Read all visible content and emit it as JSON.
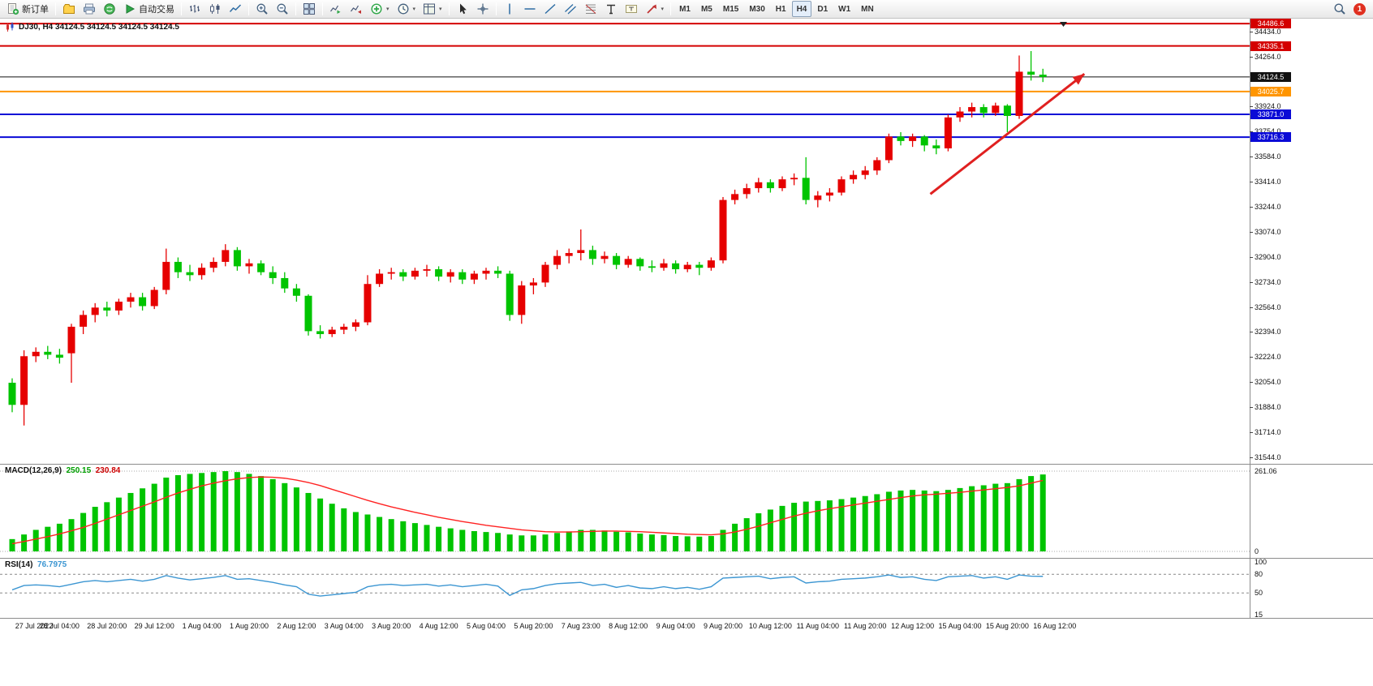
{
  "toolbar": {
    "new_order_label": "新订单",
    "auto_trading_label": "自动交易",
    "notification_count": "1",
    "timeframes": [
      "M1",
      "M5",
      "M15",
      "M30",
      "H1",
      "H4",
      "D1",
      "W1",
      "MN"
    ],
    "active_timeframe": "H4",
    "items": [
      {
        "name": "new-order-button",
        "icon": "new-order-icon",
        "label": "新订单"
      },
      {
        "divider": true
      },
      {
        "name": "profiles-button",
        "icon": "profiles-icon"
      },
      {
        "name": "print-button",
        "icon": "print-icon"
      },
      {
        "name": "community-button",
        "icon": "community-icon"
      },
      {
        "name": "auto-trading-button",
        "icon": "autotrading-icon",
        "label": "自动交易"
      },
      {
        "divider": true
      },
      {
        "name": "bar-chart-button",
        "icon": "bar-chart-icon"
      },
      {
        "name": "candlestick-button",
        "icon": "candlestick-icon"
      },
      {
        "name": "line-chart-button",
        "icon": "line-chart-icon"
      },
      {
        "divider": true
      },
      {
        "name": "zoom-in-button",
        "icon": "zoom-in-icon"
      },
      {
        "name": "zoom-out-button",
        "icon": "zoom-out-icon"
      },
      {
        "divider": true
      },
      {
        "name": "tile-windows-button",
        "icon": "tile-windows-icon"
      },
      {
        "divider": true
      },
      {
        "name": "auto-scroll-button",
        "icon": "auto-scroll-icon"
      },
      {
        "name": "chart-shift-button",
        "icon": "chart-shift-icon"
      },
      {
        "name": "indicators-button",
        "icon": "indicators-add-icon",
        "dropdown": true
      },
      {
        "name": "periods-button",
        "icon": "periods-clock-icon",
        "dropdown": true
      },
      {
        "name": "templates-button",
        "icon": "templates-icon",
        "dropdown": true
      },
      {
        "divider": true
      },
      {
        "name": "cursor-button",
        "icon": "cursor-icon"
      },
      {
        "name": "crosshair-button",
        "icon": "crosshair-icon"
      },
      {
        "divider": true
      },
      {
        "name": "vertical-line-button",
        "icon": "vertical-line-icon"
      },
      {
        "name": "horizontal-line-button",
        "icon": "horizontal-line-icon"
      },
      {
        "name": "trendline-button",
        "icon": "trendline-icon"
      },
      {
        "name": "equidistant-channel-button",
        "icon": "equidistant-channel-icon"
      },
      {
        "name": "fibonacci-button",
        "icon": "fibonacci-icon"
      },
      {
        "name": "text-button",
        "icon": "text-icon"
      },
      {
        "name": "label-button",
        "icon": "label-icon"
      },
      {
        "name": "arrows-button",
        "icon": "arrows-icon",
        "dropdown": true
      },
      {
        "divider": true
      },
      {
        "type": "timeframes"
      }
    ]
  },
  "chart": {
    "symbol_ohlc_line": "DJ30, H4  34124.5 34124.5 34124.5 34124.5",
    "price_axis_ticks": [
      "34434.0",
      "34264.0",
      "33924.0",
      "33754.0",
      "33584.0",
      "33414.0",
      "33244.0",
      "33074.0",
      "32904.0",
      "32734.0",
      "32564.0",
      "32394.0",
      "32224.0",
      "32054.0",
      "31884.0",
      "31714.0",
      "31544.0"
    ],
    "price_tags": [
      {
        "price": 34486.6,
        "label": "34486.6",
        "color": "#d40000"
      },
      {
        "price": 34335.1,
        "label": "34335.1",
        "color": "#d40000"
      },
      {
        "price": 34124.5,
        "label": "34124.5",
        "color": "#111111"
      },
      {
        "price": 34025.7,
        "label": "34025.7",
        "color": "#ff9500"
      },
      {
        "price": 33871.0,
        "label": "33871.0",
        "color": "#0a0ad6"
      },
      {
        "price": 33716.3,
        "label": "33716.3",
        "color": "#0a0ad6"
      }
    ]
  },
  "chart_data": {
    "type": "candlestick",
    "symbol": "DJ30",
    "timeframe": "H4",
    "title": "DJ30, H4  34124.5 34124.5 34124.5 34124.5",
    "price_range": [
      31500,
      34520
    ],
    "up_color": "#e60000",
    "down_color": "#00c400",
    "x_labels": [
      "27 Jul 2022",
      "28 Jul 04:00",
      "28 Jul 20:00",
      "29 Jul 12:00",
      "1 Aug 04:00",
      "1 Aug 20:00",
      "2 Aug 12:00",
      "3 Aug 04:00",
      "3 Aug 20:00",
      "4 Aug 12:00",
      "5 Aug 04:00",
      "5 Aug 20:00",
      "7 Aug 23:00",
      "8 Aug 12:00",
      "9 Aug 04:00",
      "9 Aug 20:00",
      "10 Aug 12:00",
      "11 Aug 04:00",
      "11 Aug 20:00",
      "12 Aug 12:00",
      "15 Aug 04:00",
      "15 Aug 20:00",
      "16 Aug 12:00"
    ],
    "candles_ohlc": [
      [
        32050,
        32080,
        31850,
        31900
      ],
      [
        31900,
        32270,
        31760,
        32230
      ],
      [
        32230,
        32290,
        32190,
        32260
      ],
      [
        32260,
        32300,
        32210,
        32240
      ],
      [
        32240,
        32280,
        32180,
        32220
      ],
      [
        32250,
        32450,
        32050,
        32430
      ],
      [
        32430,
        32540,
        32380,
        32510
      ],
      [
        32510,
        32590,
        32460,
        32560
      ],
      [
        32560,
        32600,
        32500,
        32540
      ],
      [
        32540,
        32620,
        32510,
        32600
      ],
      [
        32600,
        32660,
        32560,
        32630
      ],
      [
        32630,
        32660,
        32540,
        32570
      ],
      [
        32570,
        32700,
        32550,
        32680
      ],
      [
        32680,
        32960,
        32650,
        32870
      ],
      [
        32870,
        32900,
        32760,
        32800
      ],
      [
        32800,
        32850,
        32740,
        32780
      ],
      [
        32780,
        32860,
        32750,
        32830
      ],
      [
        32830,
        32900,
        32800,
        32870
      ],
      [
        32870,
        32990,
        32840,
        32950
      ],
      [
        32950,
        32970,
        32810,
        32840
      ],
      [
        32840,
        32890,
        32790,
        32860
      ],
      [
        32860,
        32880,
        32780,
        32800
      ],
      [
        32800,
        32840,
        32720,
        32760
      ],
      [
        32760,
        32800,
        32660,
        32690
      ],
      [
        32690,
        32720,
        32600,
        32640
      ],
      [
        32640,
        32650,
        32370,
        32400
      ],
      [
        32400,
        32440,
        32350,
        32380
      ],
      [
        32380,
        32430,
        32360,
        32410
      ],
      [
        32410,
        32450,
        32380,
        32430
      ],
      [
        32430,
        32480,
        32400,
        32460
      ],
      [
        32460,
        32780,
        32440,
        32720
      ],
      [
        32720,
        32820,
        32700,
        32790
      ],
      [
        32790,
        32830,
        32750,
        32800
      ],
      [
        32800,
        32820,
        32740,
        32770
      ],
      [
        32770,
        32830,
        32750,
        32810
      ],
      [
        32810,
        32850,
        32770,
        32820
      ],
      [
        32820,
        32840,
        32740,
        32770
      ],
      [
        32770,
        32820,
        32730,
        32800
      ],
      [
        32800,
        32820,
        32720,
        32750
      ],
      [
        32750,
        32810,
        32720,
        32790
      ],
      [
        32790,
        32830,
        32750,
        32810
      ],
      [
        32810,
        32840,
        32760,
        32790
      ],
      [
        32790,
        32810,
        32470,
        32510
      ],
      [
        32510,
        32740,
        32450,
        32710
      ],
      [
        32710,
        32760,
        32650,
        32730
      ],
      [
        32730,
        32870,
        32700,
        32850
      ],
      [
        32850,
        32950,
        32820,
        32910
      ],
      [
        32910,
        32960,
        32860,
        32930
      ],
      [
        32930,
        33090,
        32880,
        32950
      ],
      [
        32950,
        32980,
        32850,
        32890
      ],
      [
        32890,
        32940,
        32860,
        32910
      ],
      [
        32910,
        32930,
        32820,
        32850
      ],
      [
        32850,
        32910,
        32830,
        32890
      ],
      [
        32890,
        32900,
        32810,
        32840
      ],
      [
        32840,
        32880,
        32800,
        32830
      ],
      [
        32830,
        32890,
        32810,
        32860
      ],
      [
        32860,
        32880,
        32790,
        32820
      ],
      [
        32820,
        32870,
        32800,
        32850
      ],
      [
        32850,
        32870,
        32780,
        32830
      ],
      [
        32830,
        32900,
        32810,
        32880
      ],
      [
        32880,
        33310,
        32860,
        33290
      ],
      [
        33290,
        33360,
        33260,
        33330
      ],
      [
        33330,
        33400,
        33300,
        33370
      ],
      [
        33370,
        33440,
        33340,
        33410
      ],
      [
        33410,
        33430,
        33340,
        33370
      ],
      [
        33370,
        33450,
        33350,
        33430
      ],
      [
        33430,
        33470,
        33390,
        33440
      ],
      [
        33440,
        33580,
        33260,
        33290
      ],
      [
        33290,
        33350,
        33240,
        33320
      ],
      [
        33320,
        33370,
        33280,
        33340
      ],
      [
        33340,
        33450,
        33320,
        33430
      ],
      [
        33430,
        33490,
        33400,
        33460
      ],
      [
        33460,
        33520,
        33430,
        33490
      ],
      [
        33490,
        33580,
        33460,
        33560
      ],
      [
        33560,
        33740,
        33540,
        33720
      ],
      [
        33720,
        33750,
        33660,
        33690
      ],
      [
        33690,
        33740,
        33650,
        33720
      ],
      [
        33720,
        33730,
        33620,
        33660
      ],
      [
        33660,
        33700,
        33600,
        33640
      ],
      [
        33640,
        33870,
        33620,
        33850
      ],
      [
        33850,
        33920,
        33820,
        33890
      ],
      [
        33890,
        33950,
        33850,
        33920
      ],
      [
        33920,
        33940,
        33850,
        33880
      ],
      [
        33880,
        33950,
        33860,
        33930
      ],
      [
        33930,
        33940,
        33750,
        33860
      ],
      [
        33860,
        34270,
        33840,
        34160
      ],
      [
        34160,
        34300,
        34100,
        34140
      ],
      [
        34140,
        34180,
        34090,
        34124.5
      ]
    ],
    "annotations": {
      "trend_arrow": {
        "from_index": 77.5,
        "from_price": 33330,
        "to_index": 90.5,
        "to_price": 34145,
        "color": "#e02020"
      }
    },
    "macd": {
      "label": "MACD(12,26,9)",
      "main_value": "250.15",
      "signal_value": "230.84",
      "axis_max": "261.06",
      "axis_min": "0",
      "histogram_color": "#00c400",
      "signal_color": "#ff2222",
      "histogram": [
        40,
        55,
        70,
        80,
        90,
        105,
        125,
        145,
        160,
        175,
        190,
        205,
        220,
        240,
        248,
        252,
        255,
        258,
        261,
        258,
        252,
        245,
        235,
        222,
        208,
        190,
        172,
        155,
        140,
        128,
        120,
        112,
        105,
        98,
        92,
        86,
        80,
        75,
        70,
        66,
        63,
        60,
        55,
        52,
        52,
        55,
        60,
        65,
        70,
        70,
        68,
        64,
        62,
        58,
        55,
        53,
        50,
        49,
        48,
        50,
        70,
        90,
        108,
        124,
        136,
        148,
        158,
        162,
        164,
        166,
        170,
        175,
        180,
        186,
        194,
        198,
        200,
        198,
        196,
        200,
        206,
        212,
        215,
        220,
        222,
        235,
        245,
        250.15
      ],
      "signal": [
        25,
        32,
        40,
        48,
        57,
        67,
        78,
        91,
        105,
        119,
        133,
        147,
        161,
        176,
        190,
        202,
        213,
        222,
        230,
        236,
        240,
        242,
        241,
        238,
        232,
        224,
        214,
        202,
        190,
        178,
        166,
        155,
        145,
        136,
        127,
        119,
        111,
        104,
        97,
        91,
        85,
        80,
        75,
        70,
        67,
        64,
        63,
        63,
        64,
        65,
        66,
        66,
        65,
        64,
        62,
        60,
        58,
        56,
        55,
        54,
        57,
        63,
        72,
        82,
        93,
        104,
        115,
        124,
        132,
        139,
        145,
        151,
        157,
        163,
        169,
        175,
        180,
        184,
        186,
        189,
        192,
        196,
        200,
        204,
        208,
        213,
        222,
        230.84
      ]
    },
    "rsi": {
      "label": "RSI(14)",
      "value": "76.7975",
      "color": "#3c96d2",
      "levels": [
        80,
        50
      ],
      "axis_labels": [
        "100",
        "80",
        "50",
        "15"
      ],
      "range": [
        15,
        100
      ],
      "values": [
        55,
        62,
        63,
        62,
        60,
        64,
        68,
        70,
        68,
        70,
        72,
        69,
        72,
        78,
        74,
        71,
        73,
        75,
        78,
        72,
        73,
        70,
        67,
        63,
        60,
        48,
        45,
        47,
        49,
        51,
        60,
        63,
        64,
        62,
        63,
        64,
        61,
        63,
        60,
        62,
        64,
        61,
        46,
        55,
        57,
        62,
        65,
        66,
        67,
        62,
        64,
        59,
        62,
        58,
        57,
        60,
        57,
        59,
        56,
        60,
        74,
        75,
        76,
        77,
        73,
        75,
        76,
        66,
        68,
        69,
        72,
        73,
        74,
        76,
        79,
        75,
        76,
        72,
        70,
        76,
        77,
        78,
        74,
        76,
        72,
        79,
        77,
        76.8
      ]
    }
  }
}
